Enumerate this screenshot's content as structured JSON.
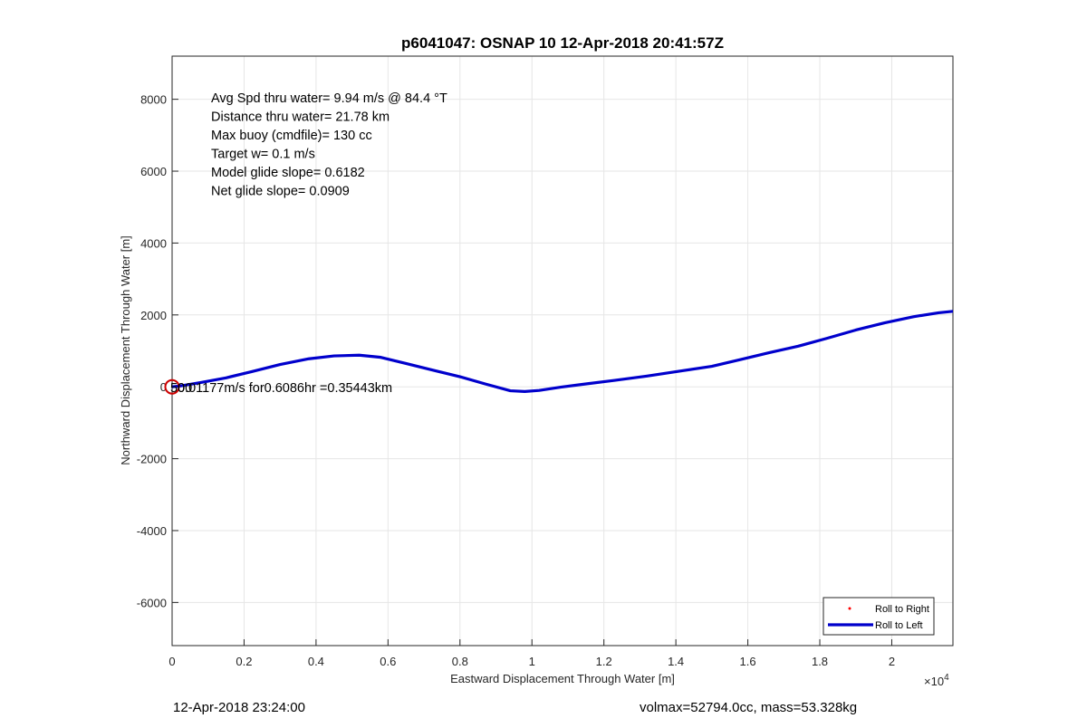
{
  "chart_data": {
    "type": "line",
    "title": "p6041047: OSNAP 10 12-Apr-2018 20:41:57Z",
    "xlabel": "Eastward Displacement Through Water [m]",
    "ylabel": "Northward Displacement Through Water [m]",
    "xlim": [
      0,
      21700
    ],
    "ylim": [
      -7200,
      9200
    ],
    "x_ticks": [
      0,
      2000,
      4000,
      6000,
      8000,
      10000,
      12000,
      14000,
      16000,
      18000,
      20000
    ],
    "x_tick_labels": [
      "0",
      "0.2",
      "0.4",
      "0.6",
      "0.8",
      "1",
      "1.2",
      "1.4",
      "1.6",
      "1.8",
      "2"
    ],
    "x_multiplier": "×10",
    "x_multiplier_exp": "4",
    "y_ticks": [
      -6000,
      -4000,
      -2000,
      0,
      2000,
      4000,
      6000,
      8000
    ],
    "y_tick_labels": [
      "-6000",
      "-4000",
      "-2000",
      "0",
      "2000",
      "4000",
      "6000",
      "8000"
    ],
    "grid": true,
    "legend_position": "bottom-right",
    "series": [
      {
        "name": "Roll to Right",
        "style": "dots",
        "color": "#ff0000",
        "x": [],
        "y": []
      },
      {
        "name": "Roll to Left",
        "style": "line",
        "color": "#0000cc",
        "x": [
          0,
          200,
          800,
          1500,
          2200,
          3000,
          3800,
          4500,
          5200,
          5800,
          6500,
          7300,
          8000,
          8700,
          9400,
          9800,
          10200,
          10800,
          11500,
          12300,
          13200,
          14200,
          15000,
          15800,
          16600,
          17400,
          18200,
          19000,
          19800,
          20600,
          21300,
          21700
        ],
        "y": [
          0,
          20,
          120,
          250,
          420,
          620,
          780,
          860,
          880,
          820,
          650,
          450,
          280,
          80,
          -110,
          -130,
          -100,
          -10,
          80,
          180,
          300,
          450,
          570,
          760,
          950,
          1130,
          1350,
          1580,
          1780,
          1950,
          2060,
          2100
        ]
      }
    ],
    "start_marker": {
      "x": 0,
      "y": 0,
      "color": "#cc0000",
      "label": "0.01177m/s for0.6086hr =0.35443km",
      "overlap_label": "500"
    },
    "annotations": [
      "Avg Spd thru water=  9.94 m/s @  84.4 °T",
      "Distance thru water= 21.78 km",
      "Max buoy (cmdfile)= 130 cc",
      "Target w= 0.1 m/s",
      "Model glide slope= 0.6182",
      "Net glide slope= 0.0909"
    ]
  },
  "footer": {
    "left": "12-Apr-2018 23:24:00",
    "right": "volmax=52794.0cc, mass=53.328kg"
  }
}
